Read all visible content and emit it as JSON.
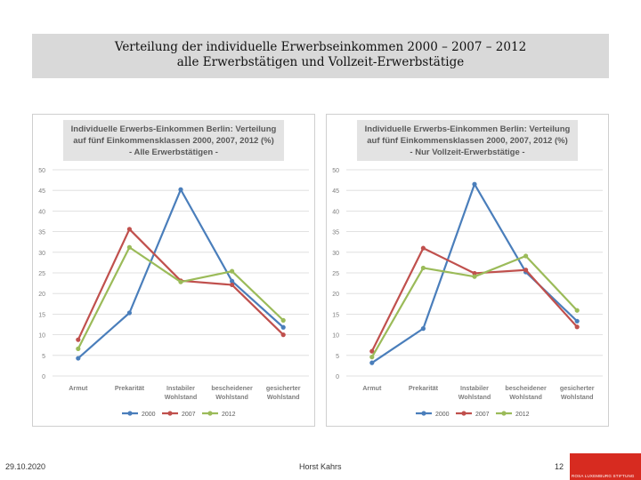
{
  "slide": {
    "title_line1": "Verteilung der individuelle Erwerbseinkommen 2000 – 2007 – 2012",
    "title_line2": "alle Erwerbstätigen und Vollzeit-Erwerbstätige"
  },
  "footer": {
    "date": "29.10.2020",
    "author": "Horst Kahrs",
    "page": "12",
    "logo_text": "ROSA LUXEMBURG STIFTUNG"
  },
  "colors": {
    "2000": "#4a7ebb",
    "2007": "#c0504d",
    "2012": "#9bbb59"
  },
  "chart_data": [
    {
      "type": "line",
      "title": [
        "Individuelle Erwerbs-Einkommen Berlin: Verteilung",
        "auf fünf Einkommensklassen 2000, 2007, 2012 (%)",
        "- Alle Erwerbstätigen -"
      ],
      "categories": [
        [
          "Armut"
        ],
        [
          "Prekarität"
        ],
        [
          "Instabiler",
          "Wohlstand"
        ],
        [
          "bescheidener",
          "Wohlstand"
        ],
        [
          "gesicherter",
          "Wohlstand"
        ]
      ],
      "ylim": [
        0,
        50
      ],
      "yticks": [
        0,
        5,
        10,
        15,
        20,
        25,
        30,
        35,
        40,
        45,
        50
      ],
      "grid": true,
      "legend": "bottom",
      "series": [
        {
          "name": "2000",
          "values": [
            4.3,
            15.3,
            45.2,
            23.0,
            11.8
          ]
        },
        {
          "name": "2007",
          "values": [
            8.8,
            35.6,
            23.1,
            22.1,
            10.0
          ]
        },
        {
          "name": "2012",
          "values": [
            6.6,
            31.2,
            22.8,
            25.4,
            13.5
          ]
        }
      ]
    },
    {
      "type": "line",
      "title": [
        "Individuelle Erwerbs-Einkommen Berlin: Verteilung",
        "auf fünf Einkommensklassen 2000, 2007, 2012 (%)",
        "- Nur Vollzeit-Erwerbstätige -"
      ],
      "categories": [
        [
          "Armut"
        ],
        [
          "Prekarität"
        ],
        [
          "Instabiler",
          "Wohlstand"
        ],
        [
          "bescheidener",
          "Wohlstand"
        ],
        [
          "gesicherter",
          "Wohlstand"
        ]
      ],
      "ylim": [
        0,
        50
      ],
      "yticks": [
        0,
        5,
        10,
        15,
        20,
        25,
        30,
        35,
        40,
        45,
        50
      ],
      "grid": true,
      "legend": "bottom",
      "series": [
        {
          "name": "2000",
          "values": [
            3.2,
            11.5,
            46.5,
            25.2,
            13.3
          ]
        },
        {
          "name": "2007",
          "values": [
            6.0,
            31.0,
            24.9,
            25.7,
            11.9
          ]
        },
        {
          "name": "2012",
          "values": [
            4.6,
            26.2,
            24.1,
            29.1,
            15.9
          ]
        }
      ]
    }
  ]
}
